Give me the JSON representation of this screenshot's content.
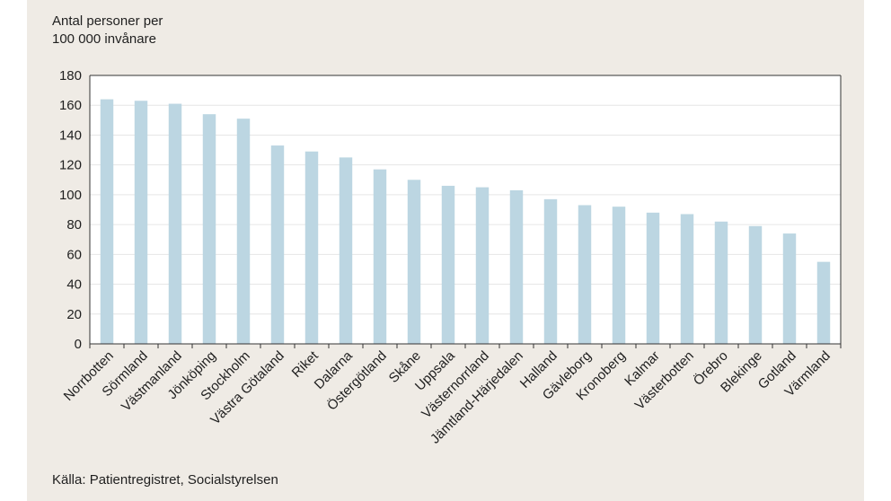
{
  "chart_data": {
    "type": "bar",
    "ylabel_lines": [
      "Antal personer per",
      "100 000 invånare"
    ],
    "source": "Källa: Patientregistret, Socialstyrelsen",
    "ylim": [
      0,
      180
    ],
    "yticks": [
      0,
      20,
      40,
      60,
      80,
      100,
      120,
      140,
      160,
      180
    ],
    "grid": true,
    "categories": [
      "Norrbotten",
      "Sörmland",
      "Västmanland",
      "Jönköping",
      "Stockholm",
      "Västra Götaland",
      "Riket",
      "Dalarna",
      "Östergötland",
      "Skåne",
      "Uppsala",
      "Västernorrland",
      "Jämtland-Härjedalen",
      "Halland",
      "Gävleborg",
      "Kronoberg",
      "Kalmar",
      "Västerbotten",
      "Örebro",
      "Blekinge",
      "Gotland",
      "Värmland"
    ],
    "values": [
      164,
      163,
      161,
      154,
      151,
      133,
      129,
      125,
      117,
      110,
      106,
      105,
      103,
      97,
      93,
      92,
      88,
      87,
      82,
      79,
      74,
      55
    ],
    "colors": {
      "bar": "#bcd6e2",
      "axis": "#333333",
      "grid": "#e6e6e6",
      "plot_bg": "#ffffff"
    }
  }
}
